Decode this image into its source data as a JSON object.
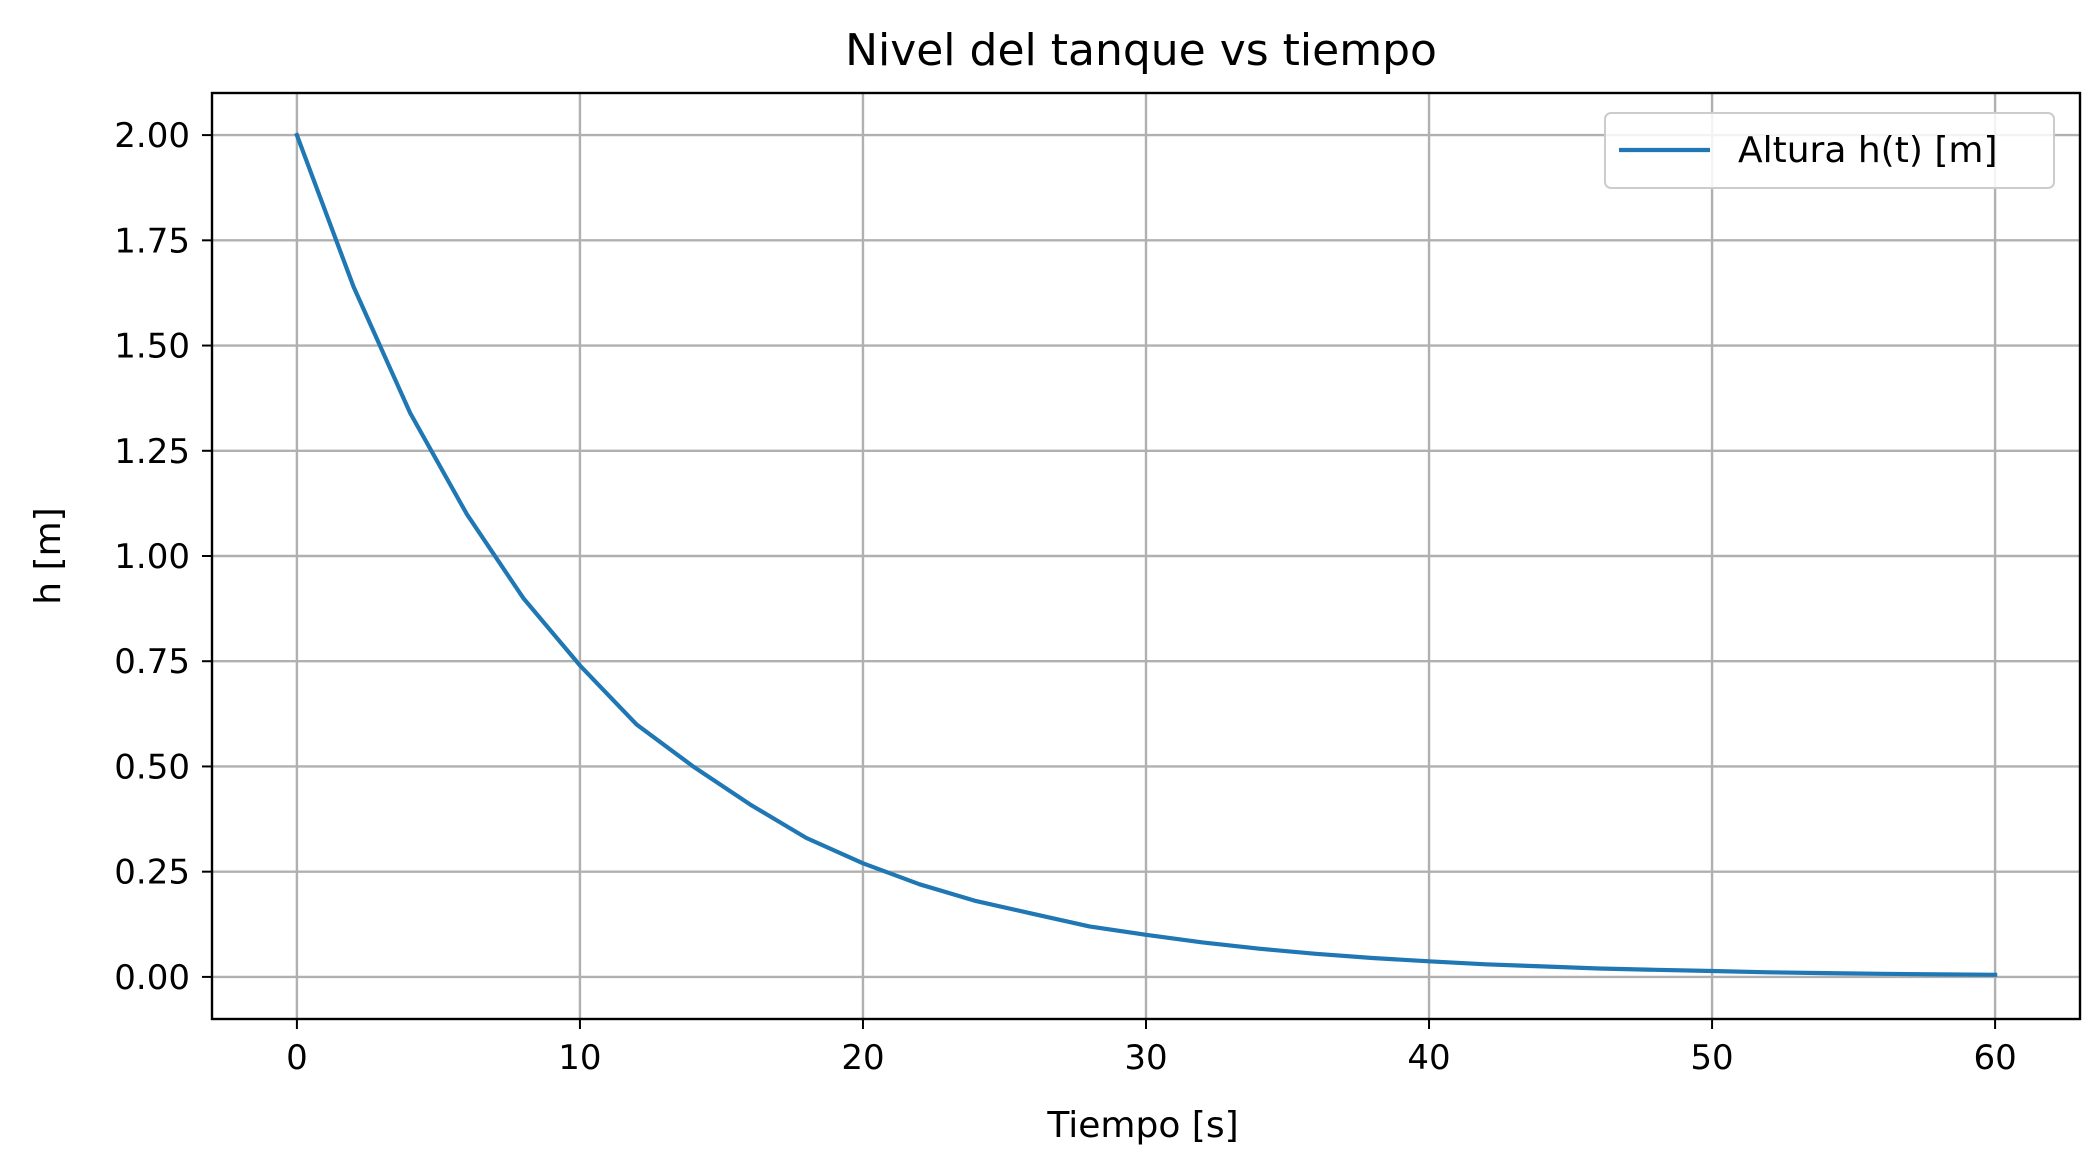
{
  "chart_data": {
    "type": "line",
    "title": "Nivel del tanque vs tiempo",
    "xlabel": "Tiempo [s]",
    "ylabel": "h [m]",
    "xlim": [
      -3,
      63
    ],
    "ylim": [
      -0.1,
      2.1
    ],
    "xticks": [
      0,
      10,
      20,
      30,
      40,
      50,
      60
    ],
    "xtick_labels": [
      "0",
      "10",
      "20",
      "30",
      "40",
      "50",
      "60"
    ],
    "yticks": [
      0,
      0.25,
      0.5,
      0.75,
      1.0,
      1.25,
      1.5,
      1.75,
      2.0
    ],
    "ytick_labels": [
      "0.00",
      "0.25",
      "0.50",
      "0.75",
      "1.00",
      "1.25",
      "1.50",
      "1.75",
      "2.00"
    ],
    "grid": true,
    "legend_position": "top-right",
    "series": [
      {
        "name": "Altura h(t) [m]",
        "color": "#1f77b4",
        "x": [
          0,
          2,
          4,
          6,
          8,
          10,
          12,
          14,
          16,
          18,
          20,
          22,
          24,
          26,
          28,
          30,
          32,
          34,
          36,
          38,
          40,
          42,
          44,
          46,
          48,
          50,
          52,
          54,
          56,
          58,
          60
        ],
        "y": [
          2.0,
          1.64,
          1.34,
          1.1,
          0.9,
          0.74,
          0.6,
          0.5,
          0.41,
          0.33,
          0.27,
          0.22,
          0.18,
          0.15,
          0.12,
          0.1,
          0.082,
          0.067,
          0.055,
          0.045,
          0.037,
          0.03,
          0.025,
          0.02,
          0.017,
          0.014,
          0.011,
          0.009,
          0.0075,
          0.006,
          0.005
        ]
      }
    ]
  }
}
